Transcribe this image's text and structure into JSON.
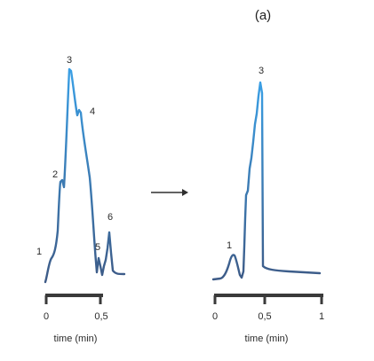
{
  "title": "(a)",
  "colors": {
    "trace_top": "#3aa0e6",
    "trace_bottom": "#3d5a86",
    "axis": "#3a3a3a",
    "text": "#2a2a2a"
  },
  "left_panel": {
    "axis_ticks": [
      "0",
      "0,5"
    ],
    "axis_label": "time (min)",
    "peak_labels": [
      "1",
      "2",
      "3",
      "4",
      "5",
      "6"
    ]
  },
  "right_panel": {
    "axis_ticks": [
      "0",
      "0,5",
      "1"
    ],
    "axis_label": "time (min)",
    "peak_labels": [
      "1",
      "3"
    ]
  },
  "arrow_icon": "right-arrow-icon"
}
